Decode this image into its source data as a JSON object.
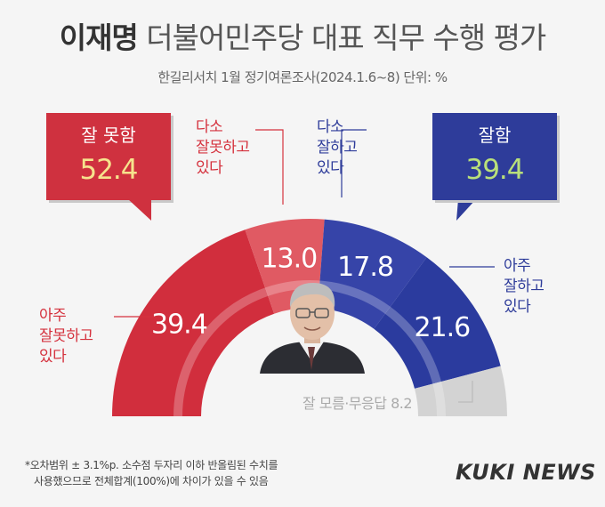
{
  "header": {
    "title_bold": "이재명",
    "title_rest": "더불어민주당 대표 직무 수행 평가",
    "subtitle": "한길리서치 1월 정기여론조사(2024.1.6~8) 단위: %"
  },
  "callouts": {
    "negative": {
      "label": "잘 못함",
      "value": "52.4"
    },
    "positive": {
      "label": "잘함",
      "value": "39.4"
    }
  },
  "segment_labels": {
    "very_bad": [
      "아주",
      "잘못하고",
      "있다"
    ],
    "somewhat_bad": [
      "다소",
      "잘못하고",
      "있다"
    ],
    "somewhat_good": [
      "다소",
      "잘하고",
      "있다"
    ],
    "very_good": [
      "아주",
      "잘하고",
      "있다"
    ],
    "dont_know": "잘 모름·무응답 8.2"
  },
  "chart_data": {
    "type": "pie",
    "variant": "semicircle-donut",
    "categories": [
      "아주 잘못하고 있다",
      "다소 잘못하고 있다",
      "다소 잘하고 있다",
      "아주 잘하고 있다",
      "잘 모름·무응답"
    ],
    "values": [
      39.4,
      13.0,
      17.8,
      21.6,
      8.2
    ],
    "value_labels": [
      "39.4",
      "13.0",
      "17.8",
      "21.6",
      "8.2"
    ],
    "colors": [
      "#d12e3d",
      "#e05a63",
      "#3644a8",
      "#2b3b9e",
      "#d3d3d3"
    ],
    "totals": {
      "잘 못함": 52.4,
      "잘함": 39.4
    },
    "title": "이재명 더불어민주당 대표 직무 수행 평가"
  },
  "footnote": {
    "line1": "*오차범위 ± 3.1%p. 소수점 두자리 이하 반올림된 수치를",
    "line2": "사용했으므로 전체합계(100%)에 차이가 있을 수 있음"
  },
  "brand": {
    "logo": "KUKI NEWS"
  }
}
